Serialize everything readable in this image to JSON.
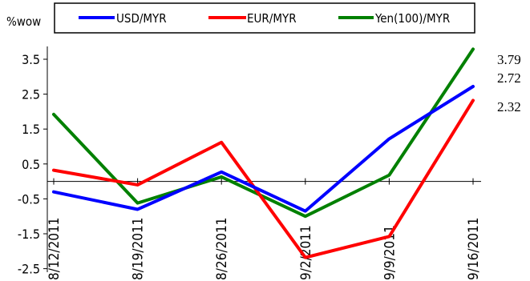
{
  "chart_data": {
    "type": "line",
    "ylabel": "%wow",
    "categories": [
      "8/12/2011",
      "8/19/2011",
      "8/26/2011",
      "9/2/2011",
      "9/9/2011",
      "9/16/2011"
    ],
    "ylim": [
      -2.5,
      4.0
    ],
    "yticks": [
      -2.5,
      -1.5,
      -0.5,
      0.5,
      1.5,
      2.5,
      3.5
    ],
    "grid": false,
    "legend_position": "top",
    "series": [
      {
        "name": "USD/MYR",
        "color": "#0000ff",
        "values": [
          -0.3,
          -0.8,
          0.27,
          -0.85,
          1.22,
          2.72
        ]
      },
      {
        "name": "EUR/MYR",
        "color": "#ff0000",
        "values": [
          0.32,
          -0.1,
          1.12,
          -2.18,
          -1.58,
          2.32
        ]
      },
      {
        "name": "Yen(100)/MYR",
        "color": "#008000",
        "values": [
          1.92,
          -0.62,
          0.13,
          -1.0,
          0.18,
          3.79
        ]
      }
    ],
    "end_labels": [
      "3.79",
      "2.72",
      "2.32"
    ]
  }
}
